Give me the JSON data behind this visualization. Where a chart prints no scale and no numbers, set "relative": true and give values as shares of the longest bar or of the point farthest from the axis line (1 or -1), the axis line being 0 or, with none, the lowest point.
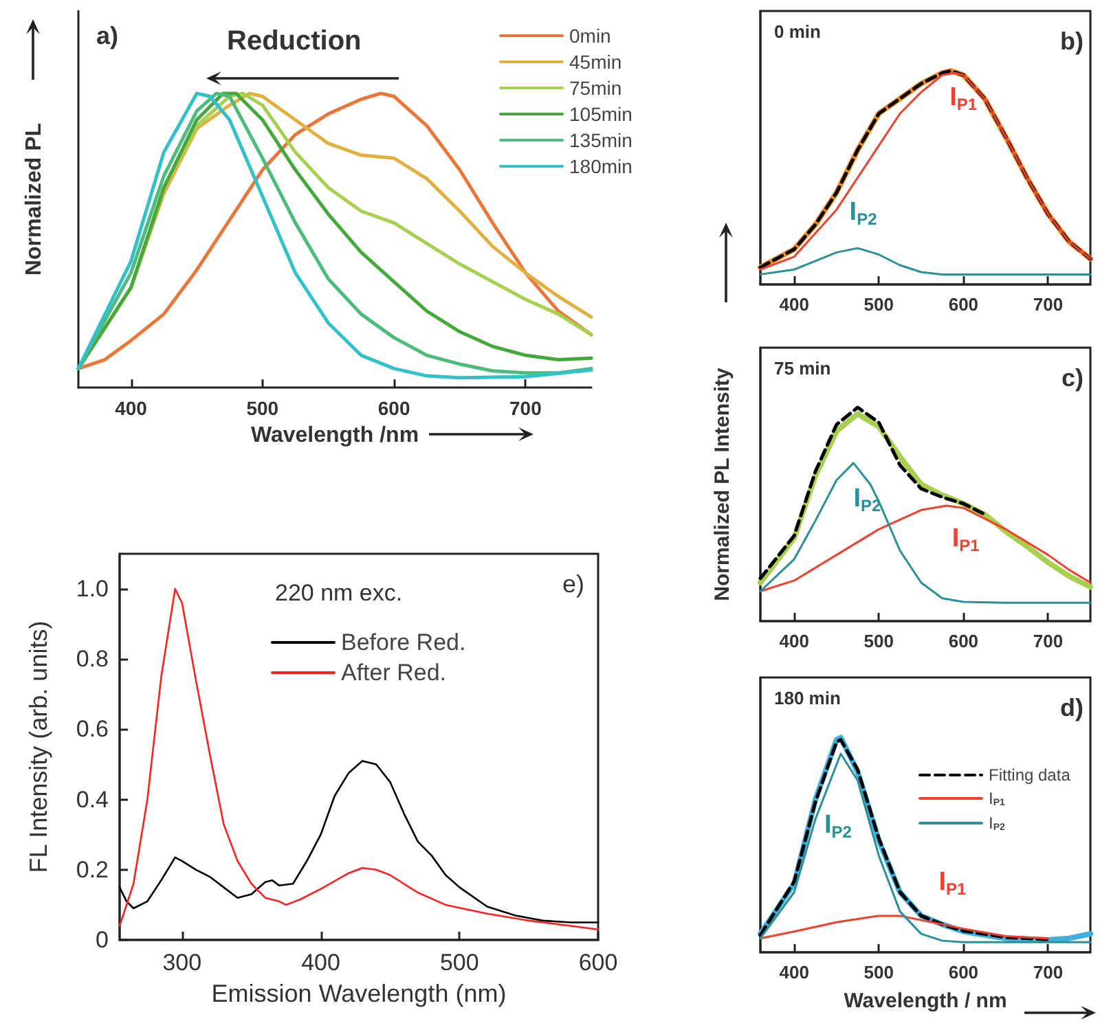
{
  "chart_data": [
    {
      "type": "line",
      "xlabel": "Wavelength /nm",
      "ylabel": "Normalized PL",
      "relative": true,
      "xlim": [
        360,
        750
      ],
      "xticks": [
        400,
        500,
        600,
        700
      ],
      "tick_labels": "x",
      "legend": "top right",
      "marker": "none",
      "annotations": [
        "a)",
        "Reduction"
      ],
      "series": [
        {
          "name": "0min",
          "color": "#e8773a",
          "x": [
            360,
            380,
            400,
            425,
            450,
            475,
            500,
            525,
            550,
            575,
            590,
            600,
            625,
            650,
            675,
            700,
            725,
            750
          ],
          "values": [
            0.065,
            0.095,
            0.16,
            0.25,
            0.4,
            0.57,
            0.74,
            0.86,
            0.93,
            0.98,
            1,
            0.99,
            0.89,
            0.74,
            0.56,
            0.39,
            0.26,
            0.18
          ]
        },
        {
          "name": "45min",
          "color": "#e0b040",
          "x": [
            360,
            400,
            425,
            450,
            475,
            490,
            500,
            525,
            550,
            575,
            600,
            625,
            650,
            675,
            700,
            725,
            750
          ],
          "values": [
            0.065,
            0.34,
            0.66,
            0.88,
            0.96,
            1,
            0.99,
            0.91,
            0.83,
            0.79,
            0.78,
            0.71,
            0.6,
            0.48,
            0.39,
            0.31,
            0.24
          ]
        },
        {
          "name": "75min",
          "color": "#a8d050",
          "x": [
            360,
            400,
            425,
            450,
            475,
            485,
            500,
            525,
            550,
            575,
            600,
            625,
            650,
            675,
            700,
            725,
            750
          ],
          "values": [
            0.065,
            0.34,
            0.68,
            0.89,
            0.99,
            1,
            0.96,
            0.8,
            0.68,
            0.6,
            0.56,
            0.49,
            0.42,
            0.36,
            0.3,
            0.25,
            0.18
          ]
        },
        {
          "name": "105min",
          "color": "#44a83c",
          "x": [
            360,
            400,
            425,
            450,
            470,
            480,
            500,
            525,
            550,
            575,
            600,
            625,
            650,
            675,
            700,
            725,
            750
          ],
          "values": [
            0.065,
            0.34,
            0.68,
            0.91,
            1,
            1,
            0.91,
            0.74,
            0.59,
            0.46,
            0.36,
            0.26,
            0.19,
            0.14,
            0.11,
            0.095,
            0.1
          ]
        },
        {
          "name": "135min",
          "color": "#4cbb7c",
          "x": [
            360,
            400,
            425,
            450,
            465,
            475,
            500,
            525,
            550,
            575,
            600,
            625,
            650,
            675,
            700,
            725,
            750
          ],
          "values": [
            0.065,
            0.39,
            0.72,
            0.94,
            1,
            0.99,
            0.78,
            0.56,
            0.37,
            0.25,
            0.17,
            0.11,
            0.08,
            0.057,
            0.05,
            0.05,
            0.065
          ]
        },
        {
          "name": "180min",
          "color": "#33c0c8",
          "x": [
            360,
            400,
            425,
            450,
            460,
            475,
            500,
            525,
            550,
            575,
            600,
            625,
            650,
            700,
            750
          ],
          "values": [
            0.065,
            0.43,
            0.8,
            1,
            0.99,
            0.91,
            0.65,
            0.39,
            0.22,
            0.11,
            0.065,
            0.04,
            0.034,
            0.037,
            0.06
          ]
        }
      ]
    },
    {
      "type": "line",
      "relative": true,
      "xlim": [
        360,
        750
      ],
      "xticks": [
        400,
        500,
        600,
        700
      ],
      "tick_labels": "x",
      "marker": "none",
      "annotations": [
        "0 min",
        "b)"
      ],
      "series": [
        {
          "color": "#f0902a",
          "x": [
            360,
            400,
            425,
            450,
            475,
            500,
            525,
            550,
            575,
            585,
            600,
            625,
            650,
            675,
            700,
            725,
            750
          ],
          "values": [
            0.08,
            0.165,
            0.28,
            0.43,
            0.63,
            0.8,
            0.87,
            0.94,
            0.99,
            1,
            0.98,
            0.87,
            0.69,
            0.5,
            0.33,
            0.2,
            0.12
          ]
        },
        {
          "color": "#000000",
          "line_style": "dashed",
          "x": [
            360,
            400,
            425,
            450,
            475,
            500,
            525,
            550,
            575,
            585,
            600,
            625,
            650,
            675,
            700,
            725,
            750
          ],
          "values": [
            0.08,
            0.165,
            0.28,
            0.43,
            0.63,
            0.8,
            0.87,
            0.94,
            0.99,
            1,
            0.98,
            0.87,
            0.69,
            0.5,
            0.33,
            0.2,
            0.12
          ]
        },
        {
          "name": "I$_{P1}$",
          "color": "#f04030",
          "x": [
            360,
            400,
            450,
            500,
            525,
            550,
            575,
            590,
            600,
            625,
            650,
            675,
            700,
            725,
            750
          ],
          "values": [
            0.07,
            0.13,
            0.35,
            0.65,
            0.8,
            0.9,
            0.98,
            0.99,
            0.98,
            0.87,
            0.69,
            0.5,
            0.33,
            0.2,
            0.12
          ]
        },
        {
          "name": "I$_{P2}$",
          "color": "#2a9098",
          "x": [
            360,
            400,
            425,
            450,
            475,
            500,
            525,
            550,
            575,
            750
          ],
          "values": [
            0.047,
            0.07,
            0.11,
            0.15,
            0.17,
            0.14,
            0.09,
            0.058,
            0.047,
            0.047
          ]
        }
      ]
    },
    {
      "type": "line",
      "ylabel": "Normalized PL Intensity",
      "relative": true,
      "xlim": [
        360,
        750
      ],
      "xticks": [
        400,
        500,
        600,
        700
      ],
      "tick_labels": "x",
      "marker": "none",
      "annotations": [
        "75 min",
        "c)"
      ],
      "series": [
        {
          "color": "#a8d050",
          "x": [
            360,
            400,
            425,
            450,
            475,
            500,
            525,
            550,
            575,
            600,
            625,
            650,
            675,
            700,
            725,
            750
          ],
          "values": [
            0.18,
            0.39,
            0.68,
            0.89,
            0.97,
            0.91,
            0.77,
            0.64,
            0.59,
            0.55,
            0.5,
            0.42,
            0.35,
            0.275,
            0.21,
            0.16
          ]
        },
        {
          "color": "#000000",
          "line_style": "dashed",
          "x": [
            360,
            400,
            425,
            450,
            475,
            500,
            525,
            550,
            575,
            600,
            625
          ],
          "values": [
            0.2,
            0.4,
            0.7,
            0.92,
            1,
            0.93,
            0.73,
            0.62,
            0.58,
            0.55,
            0.5
          ]
        },
        {
          "name": "I$_{P1}$",
          "color": "#f04030",
          "x": [
            360,
            400,
            450,
            500,
            550,
            580,
            600,
            650,
            700,
            725,
            750
          ],
          "values": [
            0.14,
            0.19,
            0.31,
            0.43,
            0.52,
            0.54,
            0.53,
            0.43,
            0.31,
            0.24,
            0.18
          ]
        },
        {
          "name": "I$_{P2}$",
          "color": "#2a9098",
          "x": [
            360,
            400,
            425,
            450,
            470,
            490,
            500,
            525,
            550,
            575,
            600,
            650,
            750
          ],
          "values": [
            0.14,
            0.29,
            0.47,
            0.66,
            0.74,
            0.64,
            0.56,
            0.33,
            0.18,
            0.107,
            0.09,
            0.086,
            0.086
          ]
        }
      ]
    },
    {
      "type": "line",
      "xlabel": "Wavelength / nm",
      "relative": true,
      "xlim": [
        360,
        750
      ],
      "xticks": [
        400,
        500,
        600,
        700
      ],
      "tick_labels": "x",
      "marker": "none",
      "legend": "top right",
      "annotations": [
        "180 min",
        "d)"
      ],
      "series": [
        {
          "color": "#3fb0dc",
          "x": [
            360,
            400,
            425,
            450,
            455,
            475,
            500,
            525,
            550,
            575,
            600,
            650,
            700,
            725,
            750
          ],
          "values": [
            0.086,
            0.32,
            0.71,
            0.99,
            1,
            0.84,
            0.52,
            0.28,
            0.17,
            0.13,
            0.097,
            0.065,
            0.058,
            0.065,
            0.086
          ]
        },
        {
          "name": "Fitting data",
          "color": "#000000",
          "line_style": "dashed",
          "x": [
            360,
            400,
            425,
            450,
            455,
            475,
            500,
            525,
            550,
            575,
            600,
            650,
            700
          ],
          "values": [
            0.08,
            0.33,
            0.7,
            0.98,
            0.99,
            0.85,
            0.53,
            0.28,
            0.17,
            0.13,
            0.1,
            0.07,
            0.06
          ]
        },
        {
          "name": "I$_{P1}$",
          "color": "#f04030",
          "x": [
            360,
            400,
            450,
            500,
            525,
            550,
            600,
            650,
            700
          ],
          "values": [
            0.065,
            0.097,
            0.14,
            0.17,
            0.17,
            0.15,
            0.11,
            0.075,
            0.065
          ]
        },
        {
          "name": "I$_{P2}$",
          "color": "#2a9098",
          "x": [
            360,
            400,
            425,
            455,
            475,
            500,
            525,
            550,
            575,
            600,
            750
          ],
          "values": [
            0.065,
            0.28,
            0.62,
            0.925,
            0.8,
            0.45,
            0.19,
            0.086,
            0.054,
            0.047,
            0.047
          ]
        }
      ]
    },
    {
      "type": "line",
      "xlabel": "Emission Wavelength (nm)",
      "ylabel": "FL Intensity (arb. units)",
      "xlim": [
        255,
        600
      ],
      "xticks": [
        300,
        400,
        500,
        600
      ],
      "ylim": [
        0,
        1.1
      ],
      "yticks": [
        0,
        0.2,
        0.4,
        0.6,
        0.8,
        {
          "value": 1,
          "label": "1.0"
        }
      ],
      "legend": "top right",
      "legend_title": "220 nm exc.",
      "marker": "none",
      "annotations": [
        "e)"
      ],
      "series": [
        {
          "name": "Before Red.",
          "color": "#000000",
          "x": [
            255,
            260,
            265,
            275,
            285,
            295,
            300,
            310,
            320,
            330,
            340,
            350,
            360,
            365,
            370,
            380,
            390,
            400,
            410,
            420,
            430,
            440,
            450,
            460,
            470,
            480,
            490,
            500,
            520,
            540,
            560,
            580,
            600
          ],
          "values": [
            0.15,
            0.11,
            0.09,
            0.11,
            0.17,
            0.235,
            0.225,
            0.2,
            0.18,
            0.15,
            0.12,
            0.13,
            0.165,
            0.17,
            0.155,
            0.16,
            0.225,
            0.3,
            0.41,
            0.475,
            0.51,
            0.5,
            0.45,
            0.36,
            0.28,
            0.24,
            0.185,
            0.15,
            0.095,
            0.07,
            0.055,
            0.05,
            0.05
          ]
        },
        {
          "name": "After Red.",
          "color": "#ff2020",
          "x": [
            255,
            265,
            275,
            285,
            295,
            300,
            305,
            310,
            320,
            330,
            340,
            350,
            360,
            370,
            375,
            385,
            400,
            420,
            430,
            440,
            450,
            470,
            490,
            520,
            550,
            580,
            600
          ],
          "values": [
            0.04,
            0.16,
            0.4,
            0.75,
            1,
            0.96,
            0.85,
            0.74,
            0.53,
            0.33,
            0.225,
            0.16,
            0.12,
            0.11,
            0.1,
            0.115,
            0.145,
            0.19,
            0.205,
            0.2,
            0.185,
            0.135,
            0.1,
            0.075,
            0.055,
            0.04,
            0.03
          ]
        }
      ]
    }
  ]
}
